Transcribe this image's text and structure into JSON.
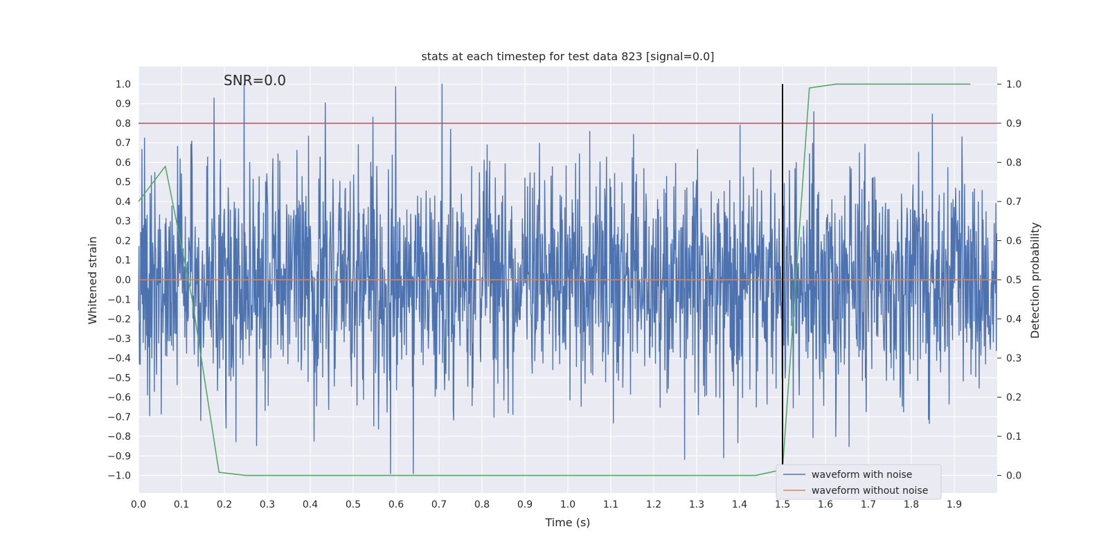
{
  "chart_data": {
    "type": "line",
    "title": "stats at each timestep for test data 823 [signal=0.0]",
    "xlabel": "Time (s)",
    "ylabel_left": "Whitened strain",
    "ylabel_right": "Detection probability",
    "annotation": "SNR=0.0",
    "xlim": [
      0.0,
      2.0
    ],
    "ylim_left": [
      -1.09,
      1.09
    ],
    "ylim_right": [
      -0.045,
      1.045
    ],
    "x_ticks": [
      "0.0",
      "0.1",
      "0.2",
      "0.3",
      "0.4",
      "0.5",
      "0.6",
      "0.7",
      "0.8",
      "0.9",
      "1.0",
      "1.1",
      "1.2",
      "1.3",
      "1.4",
      "1.5",
      "1.6",
      "1.7",
      "1.8",
      "1.9"
    ],
    "y_ticks_left": [
      "1.0",
      "0.9",
      "0.8",
      "0.7",
      "0.6",
      "0.5",
      "0.4",
      "0.3",
      "0.2",
      "0.1",
      "0.0",
      "−0.1",
      "−0.2",
      "−0.3",
      "−0.4",
      "−0.5",
      "−0.6",
      "−0.7",
      "−0.8",
      "−0.9",
      "−1.0"
    ],
    "y_ticks_right": [
      "1.0",
      "0.9",
      "0.8",
      "0.7",
      "0.6",
      "0.5",
      "0.4",
      "0.3",
      "0.2",
      "0.1",
      "0.0"
    ],
    "threshold": {
      "value_right": 0.9,
      "color": "#c44e52"
    },
    "vline": {
      "x": 1.5,
      "y_from": -1.0,
      "y_to": 1.0,
      "color": "#000000"
    },
    "series": [
      {
        "name": "waveform with noise",
        "axis": "left",
        "color": "#4c72b0",
        "kind": "noise",
        "samples": 2000,
        "seed": 823,
        "std": 0.3,
        "clip": [
          -0.99,
          1.0
        ]
      },
      {
        "name": "waveform without noise",
        "axis": "left",
        "color": "#dd8452",
        "x": [
          0.0,
          2.0
        ],
        "y": [
          0.0,
          0.0
        ]
      },
      {
        "name": "detection probability",
        "axis": "right",
        "color": "#55a868",
        "x": [
          0.0,
          0.0625,
          0.125,
          0.1875,
          0.25,
          0.3125,
          0.375,
          0.4375,
          0.5,
          0.5625,
          0.625,
          0.6875,
          0.75,
          0.8125,
          0.875,
          0.9375,
          1.0,
          1.0625,
          1.125,
          1.1875,
          1.25,
          1.3125,
          1.375,
          1.4375,
          1.5,
          1.5625,
          1.625,
          1.6875,
          1.75,
          1.8125,
          1.875,
          1.9375
        ],
        "y": [
          0.7,
          0.79,
          0.45,
          0.008,
          0.0,
          0.0,
          0.0,
          0.0,
          0.0,
          0.0,
          0.0,
          0.0,
          0.0,
          0.0,
          0.0,
          0.0,
          0.0,
          0.0,
          0.0,
          0.0,
          0.0,
          0.0,
          0.0,
          0.0,
          0.015,
          0.99,
          1.0,
          1.0,
          1.0,
          1.0,
          1.0,
          1.0
        ]
      }
    ],
    "legend": {
      "placement": "bottom-right",
      "entries": [
        {
          "label": "waveform with noise",
          "color": "#4c72b0"
        },
        {
          "label": "waveform without noise",
          "color": "#dd8452"
        }
      ]
    },
    "style": {
      "plot_bg": "#eaeaf2",
      "grid_color": "#ffffff"
    }
  }
}
